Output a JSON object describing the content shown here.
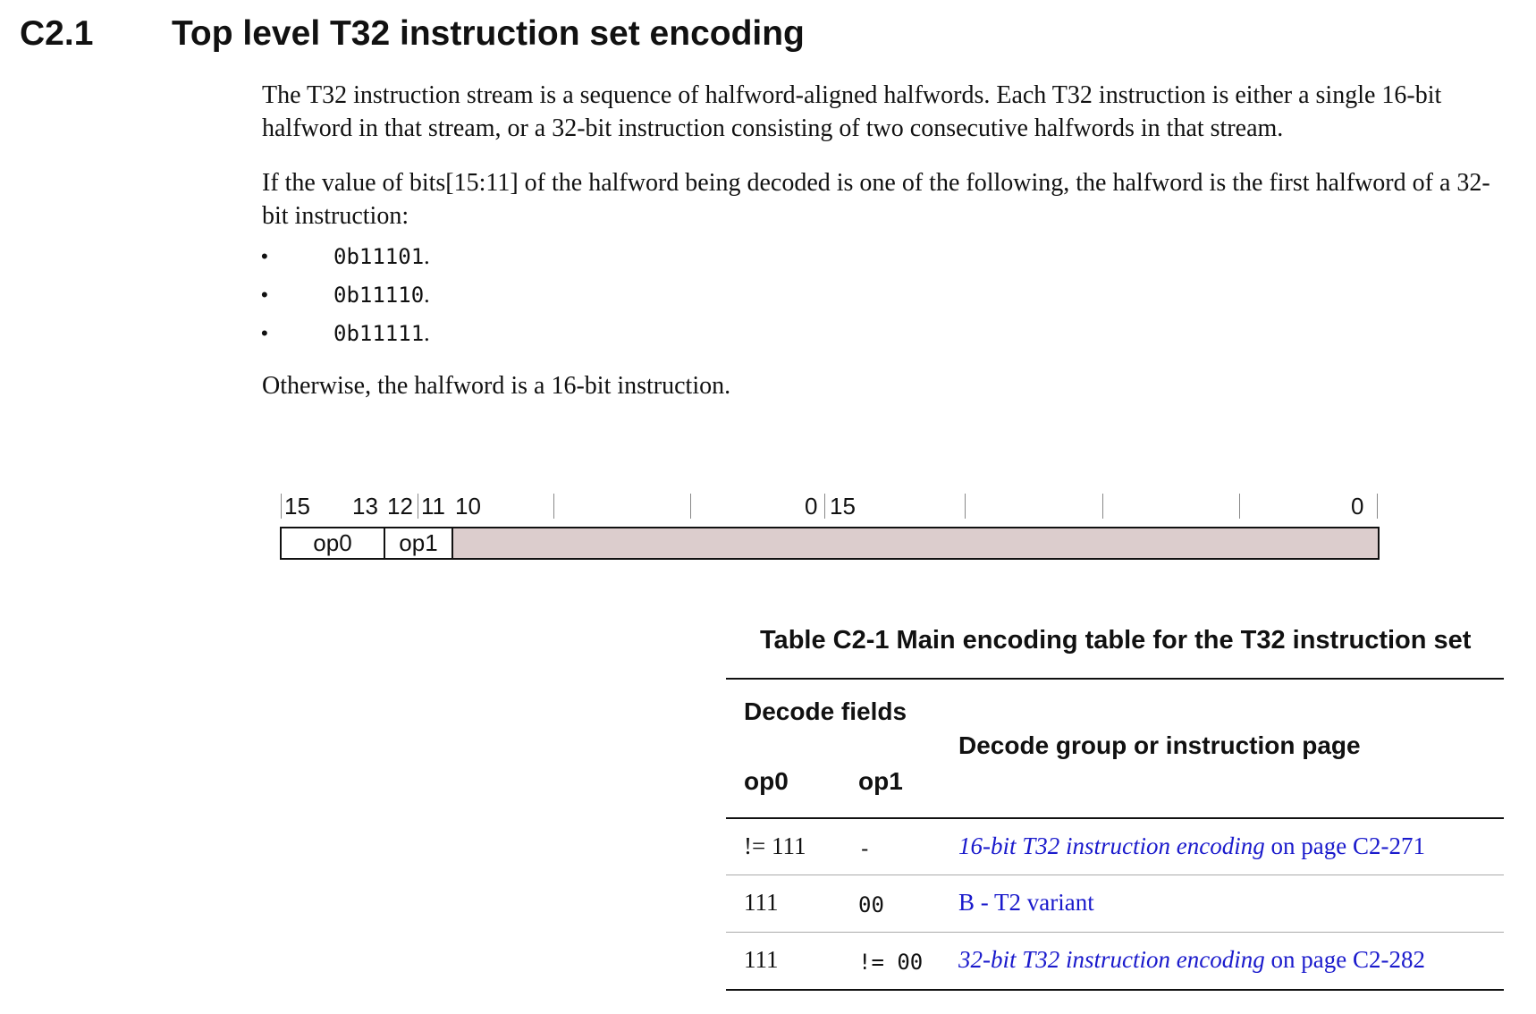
{
  "section": {
    "number": "C2.1",
    "title": "Top level T32 instruction set encoding"
  },
  "paragraphs": {
    "intro": "The T32 instruction stream is a sequence of halfword-aligned halfwords. Each T32 instruction is either a single 16-bit halfword in that stream, or a 32-bit instruction consisting of two consecutive halfwords in that stream.",
    "condition": "If the value of bits[15:11] of the halfword being decoded is one of the following, the halfword is the first halfword of a 32-bit instruction:",
    "otherwise": "Otherwise, the halfword is a 16-bit instruction."
  },
  "bullets": [
    {
      "value": "0b11101",
      "punct": "."
    },
    {
      "value": "0b11110",
      "punct": "."
    },
    {
      "value": "0b11111",
      "punct": "."
    }
  ],
  "bit_diagram": {
    "labels": {
      "b15": "15",
      "b13": "13",
      "b12": "12",
      "b11": "11",
      "b10": "10",
      "b0_first": "0",
      "b15_second": "15",
      "b0_second": "0"
    },
    "fields": {
      "op0": "op0",
      "op1": "op1"
    }
  },
  "table": {
    "caption": "Table C2-1 Main encoding table for the T32 instruction set",
    "headers": {
      "decode_fields": "Decode fields",
      "op0": "op0",
      "op1": "op1",
      "group": "Decode group or instruction page"
    },
    "rows": [
      {
        "op0": "!= 111",
        "op1": "-",
        "link_text": "16-bit T32 instruction encoding",
        "link_suffix": " on page C2-271"
      },
      {
        "op0": "111",
        "op1": "00",
        "link_text": "B - T2 variant",
        "link_suffix": ""
      },
      {
        "op0": "111",
        "op1": "!= 00",
        "link_text": "32-bit T32 instruction encoding",
        "link_suffix": " on page C2-282"
      }
    ]
  },
  "colors": {
    "link": "#1a1acc",
    "field_fill": "#dccdcd"
  }
}
